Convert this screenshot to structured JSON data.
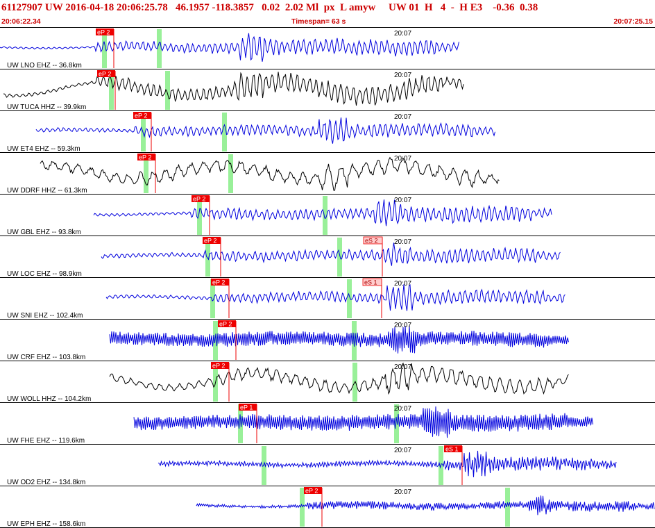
{
  "header": {
    "title": "61127907 UW 2016-04-18 20:06:25.78   46.1957 -118.3857   0.02  2.02 Ml  px  L amyw     UW 01  H   4  -  H E3    -0.36  0.38",
    "start_time": "20:06:22.34",
    "timespan": "Timespan=  63 s",
    "end_time": "20:07:25.15"
  },
  "colors": {
    "header_text": "#cc0000",
    "blue_trace": "#0000dd",
    "black_trace": "#000000",
    "pick_flag": "#ee0000",
    "pick_flag_light": "#ffcccc",
    "window_band": "#99f099",
    "separator": "#000000"
  },
  "traces": [
    {
      "label": "UW LNO EHZ -- 36.8km",
      "color": "blue",
      "time_label": "20:07",
      "pick_label": "eP 2",
      "pick_style": "solid",
      "s_pick_label": ""
    },
    {
      "label": "UW TUCA HHZ -- 39.9km",
      "color": "black",
      "time_label": "20:07",
      "pick_label": "eP 2",
      "pick_style": "solid",
      "s_pick_label": ""
    },
    {
      "label": "UW ET4 EHZ -- 59.3km",
      "color": "blue",
      "time_label": "20:07",
      "pick_label": "eP 2",
      "pick_style": "solid",
      "s_pick_label": ""
    },
    {
      "label": "UW DDRF HHZ -- 61.3km",
      "color": "black",
      "time_label": "20:07",
      "pick_label": "eP 2",
      "pick_style": "solid",
      "s_pick_label": ""
    },
    {
      "label": "UW GBL EHZ -- 93.8km",
      "color": "blue",
      "time_label": "20:07",
      "pick_label": "eP 2",
      "pick_style": "solid",
      "s_pick_label": ""
    },
    {
      "label": "UW LOC EHZ -- 98.9km",
      "color": "blue",
      "time_label": "20:07",
      "pick_label": "eP 2",
      "pick_style": "solid",
      "s_pick_label": "eS 2"
    },
    {
      "label": "UW SNI EHZ -- 102.4km",
      "color": "blue",
      "time_label": "20:07",
      "pick_label": "eP 2",
      "pick_style": "solid",
      "s_pick_label": "eS 1"
    },
    {
      "label": "UW CRF EHZ -- 103.8km",
      "color": "blue",
      "time_label": "20:07",
      "pick_label": "eP 2",
      "pick_style": "solid",
      "s_pick_label": ""
    },
    {
      "label": "UW WOLL HHZ -- 104.2km",
      "color": "black",
      "time_label": "20:07",
      "pick_label": "eP 2",
      "pick_style": "solid",
      "s_pick_label": ""
    },
    {
      "label": "UW FHE EHZ -- 119.6km",
      "color": "blue",
      "time_label": "20:07",
      "pick_label": "eP 1",
      "pick_style": "solid",
      "s_pick_label": ""
    },
    {
      "label": "UW OD2 EHZ -- 134.8km",
      "color": "blue",
      "time_label": "20:07",
      "pick_label": "eS 1",
      "pick_style": "solid",
      "s_pick_label": ""
    },
    {
      "label": "UW EPH EHZ -- 158.6km",
      "color": "blue",
      "time_label": "20:07",
      "pick_label": "eP 2",
      "pick_style": "solid",
      "s_pick_label": ""
    }
  ]
}
